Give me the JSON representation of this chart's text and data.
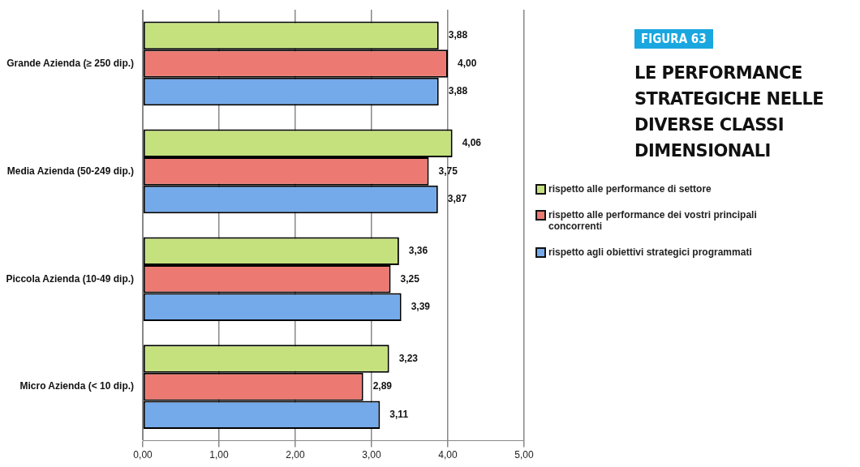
{
  "chart_data": {
    "type": "bar",
    "orientation": "horizontal",
    "title": "LE PERFORMANCE STRATEGICHE NELLE DIVERSE CLASSI DIMENSIONALI",
    "subtitle": "FIGURA 63",
    "categories": [
      "Grande Azienda (≥ 250 dip.)",
      "Media Azienda (50-249 dip.)",
      "Piccola Azienda (10-49 dip.)",
      "Micro Azienda (< 10 dip.)"
    ],
    "series": [
      {
        "name": "rispetto alle performance di settore",
        "color": "#c5e17e",
        "values": [
          3.88,
          4.06,
          3.36,
          3.23
        ],
        "value_labels": [
          "3,88",
          "4,06",
          "3,36",
          "3,23"
        ]
      },
      {
        "name": "rispetto alle performance dei vostri principali concorrenti",
        "color": "#ec7a72",
        "values": [
          4.0,
          3.75,
          3.25,
          2.89
        ],
        "value_labels": [
          "4,00",
          "3,75",
          "3,25",
          "2,89"
        ]
      },
      {
        "name": "rispetto agli obiettivi strategici programmati",
        "color": "#74aaea",
        "values": [
          3.88,
          3.87,
          3.39,
          3.11
        ],
        "value_labels": [
          "3,88",
          "3,87",
          "3,39",
          "3,11"
        ]
      }
    ],
    "xlim": [
      0,
      5
    ],
    "xticks": [
      {
        "value": 0,
        "label": "0,00"
      },
      {
        "value": 1,
        "label": "1,00"
      },
      {
        "value": 2,
        "label": "2,00"
      },
      {
        "value": 3,
        "label": "3,00"
      },
      {
        "value": 4,
        "label": "4,00"
      },
      {
        "value": 5,
        "label": "5,00"
      }
    ],
    "grid": "x",
    "legend": "right"
  }
}
